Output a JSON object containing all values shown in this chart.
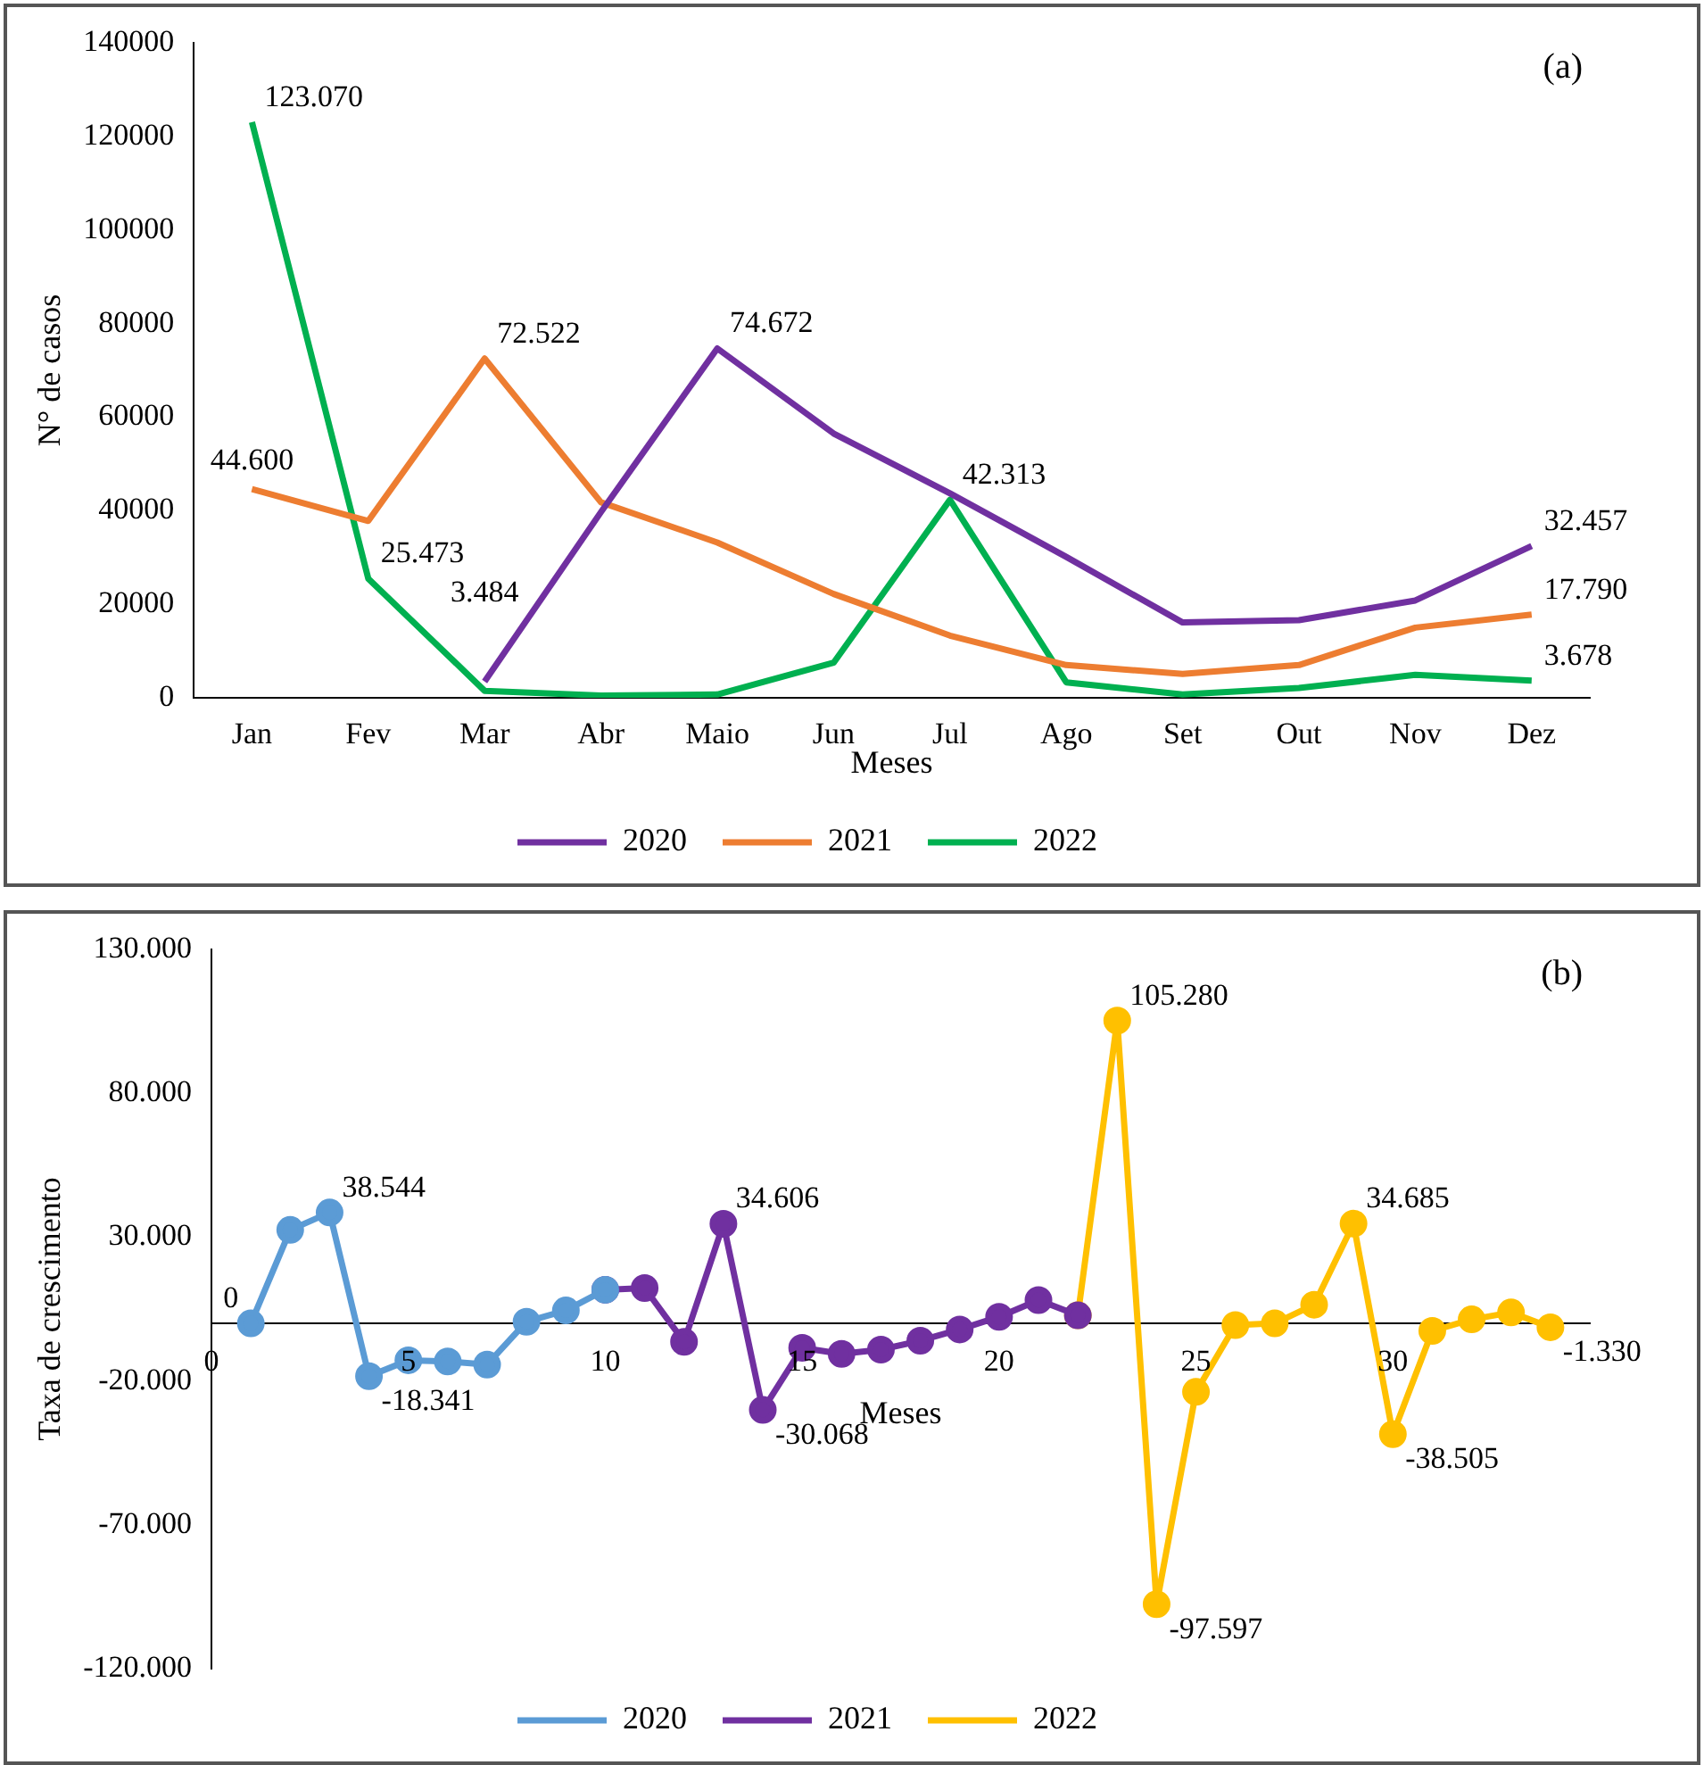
{
  "chart_data": [
    {
      "type": "line",
      "xlabel": "Meses",
      "ylabel": "N° de casos",
      "annotations": [
        "(a)"
      ],
      "categories": [
        "Jan",
        "Fev",
        "Mar",
        "Abr",
        "Maio",
        "Jun",
        "Jul",
        "Ago",
        "Set",
        "Out",
        "Nov",
        "Dez"
      ],
      "ylim": [
        0,
        140000
      ],
      "yticks": [
        0,
        20000,
        40000,
        60000,
        80000,
        100000,
        120000,
        140000
      ],
      "grid": false,
      "legend": "bottom",
      "marker": "none",
      "line_style": "solid",
      "series": [
        {
          "name": "2020",
          "color": "#7030a0",
          "values": [
            null,
            null,
            3484,
            39700,
            74672,
            56500,
            43700,
            30100,
            16100,
            16600,
            20800,
            32457
          ],
          "value_labels": [
            null,
            null,
            "3.484",
            null,
            "74.672",
            null,
            null,
            null,
            null,
            null,
            null,
            "32.457"
          ]
        },
        {
          "name": "2021",
          "color": "#ed7d31",
          "values": [
            44600,
            37800,
            72522,
            41800,
            33200,
            22200,
            13300,
            7000,
            5100,
            7000,
            15000,
            17790
          ],
          "value_labels": [
            "44.600",
            null,
            "72.522",
            null,
            null,
            null,
            null,
            null,
            null,
            null,
            null,
            "17.790"
          ]
        },
        {
          "name": "2022",
          "color": "#00b050",
          "values": [
            123070,
            25473,
            1500,
            500,
            700,
            7500,
            42313,
            3300,
            700,
            2100,
            4900,
            3678
          ],
          "value_labels": [
            "123.070",
            "25.473",
            null,
            null,
            null,
            null,
            "42.313",
            null,
            null,
            null,
            null,
            "3.678"
          ]
        }
      ]
    },
    {
      "type": "line",
      "xlabel": "Meses",
      "ylabel": "Taxa de crescimento",
      "annotations": [
        "(b)"
      ],
      "xlim": [
        0,
        35
      ],
      "xticks": [
        0,
        5,
        10,
        15,
        20,
        25,
        30
      ],
      "ylim": [
        -120000,
        130000
      ],
      "yticks": [
        {
          "value": -120000,
          "label": "-120.000"
        },
        {
          "value": -70000,
          "label": "-70.000"
        },
        {
          "value": -20000,
          "label": "-20.000"
        },
        {
          "value": 30000,
          "label": "30.000"
        },
        {
          "value": 80000,
          "label": "80.000"
        },
        {
          "value": 130000,
          "label": "130.000"
        }
      ],
      "grid": false,
      "legend": "bottom",
      "marker": "circle",
      "line_style": "solid",
      "series": [
        {
          "name": "2020",
          "color": "#5b9bd5",
          "x": [
            1,
            2,
            3,
            4,
            5,
            6,
            7,
            8,
            9,
            10
          ],
          "values": [
            0,
            32500,
            38544,
            -18341,
            -12800,
            -13200,
            -14300,
            600,
            4500,
            11700
          ],
          "value_labels": [
            "0",
            null,
            "38.544",
            "-18.341",
            null,
            null,
            null,
            null,
            null,
            null
          ]
        },
        {
          "name": "2021",
          "color": "#7030a0",
          "x": [
            10,
            11,
            12,
            13,
            14,
            15,
            16,
            17,
            18,
            19,
            20,
            21,
            22
          ],
          "values": [
            11700,
            12300,
            -6400,
            34606,
            -30068,
            -8500,
            -10600,
            -9100,
            -6000,
            -2100,
            2300,
            8100,
            2800
          ],
          "value_labels": [
            null,
            null,
            null,
            "34.606",
            "-30.068",
            null,
            null,
            null,
            null,
            null,
            null,
            null,
            null
          ]
        },
        {
          "name": "2022",
          "color": "#ffc000",
          "x": [
            22,
            23,
            24,
            25,
            26,
            27,
            28,
            29,
            30,
            31,
            32,
            33,
            34
          ],
          "values": [
            2800,
            105280,
            -97597,
            -23800,
            -600,
            0,
            6500,
            34685,
            -38505,
            -2600,
            1400,
            3800,
            -1330
          ],
          "value_labels": [
            null,
            "105.280",
            "-97.597",
            null,
            null,
            null,
            null,
            "34.685",
            "-38.505",
            null,
            null,
            null,
            "-1.330"
          ]
        }
      ]
    }
  ]
}
